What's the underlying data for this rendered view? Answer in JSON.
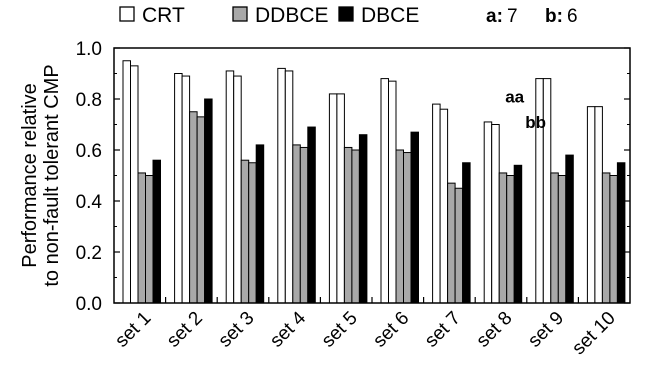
{
  "chart_data": {
    "type": "bar",
    "ylabel": [
      "Performance relative",
      "to non-fault tolerant CMP"
    ],
    "ylim": [
      0.0,
      1.0
    ],
    "yticks": [
      "0.0",
      "0.2",
      "0.4",
      "0.6",
      "0.8",
      "1.0"
    ],
    "categories": [
      "set 1",
      "set 2",
      "set 3",
      "set 4",
      "set 5",
      "set 6",
      "set 7",
      "set 8",
      "set 9",
      "set 10"
    ],
    "legend": {
      "placement": "top",
      "entries": [
        {
          "label": "CRT",
          "fill": "#ffffff"
        },
        {
          "label": "DDBCE",
          "fill": "#a8a8a8"
        },
        {
          "label": "DBCE",
          "fill": "#000000"
        }
      ],
      "notes": [
        {
          "key": "a:",
          "value": "7"
        },
        {
          "key": "b:",
          "value": "6"
        }
      ]
    },
    "series": [
      {
        "name": "CRT",
        "groups": [
          [
            0.95,
            0.93
          ],
          [
            0.9,
            0.89
          ],
          [
            0.91,
            0.89
          ],
          [
            0.92,
            0.91
          ],
          [
            0.82,
            0.82
          ],
          [
            0.88,
            0.87
          ],
          [
            0.78,
            0.76
          ],
          [
            0.71,
            0.7
          ],
          [
            0.88,
            0.88
          ],
          [
            0.77,
            0.77
          ]
        ]
      },
      {
        "name": "DDBCE",
        "groups": [
          [
            0.51,
            0.5
          ],
          [
            0.75,
            0.73
          ],
          [
            0.56,
            0.55
          ],
          [
            0.62,
            0.61
          ],
          [
            0.61,
            0.6
          ],
          [
            0.6,
            0.59
          ],
          [
            0.47,
            0.45
          ],
          [
            0.51,
            0.5
          ],
          [
            0.51,
            0.5
          ],
          [
            0.51,
            0.5
          ]
        ]
      },
      {
        "name": "DBCE",
        "groups": [
          [
            0.56
          ],
          [
            0.8
          ],
          [
            0.62
          ],
          [
            0.69
          ],
          [
            0.66
          ],
          [
            0.67
          ],
          [
            0.55
          ],
          [
            0.54
          ],
          [
            0.58
          ],
          [
            0.55
          ]
        ]
      }
    ],
    "annotations": [
      {
        "text": "aa",
        "x": "set 8",
        "y": 0.81
      },
      {
        "text": "bb",
        "x": "set 8",
        "y": 0.71
      }
    ]
  }
}
